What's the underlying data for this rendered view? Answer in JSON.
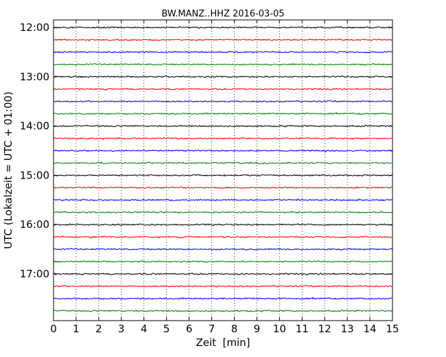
{
  "chart_data": {
    "type": "line",
    "title": "BW.MANZ..HHZ 2016-03-05",
    "xlabel": "Zeit  [min]",
    "ylabel": "UTC (Lokalzeit = UTC + 01:00)",
    "xlim": [
      0,
      15
    ],
    "x_ticks": [
      "0",
      "1",
      "2",
      "3",
      "4",
      "5",
      "6",
      "7",
      "8",
      "9",
      "10",
      "11",
      "12",
      "13",
      "14",
      "15"
    ],
    "y_tick_labels": [
      "12:00",
      "13:00",
      "14:00",
      "15:00",
      "16:00",
      "17:00"
    ],
    "grid": {
      "x": true,
      "y": false,
      "style": "dotted"
    },
    "trace_interval_minutes": 15,
    "trace_colors": [
      "#000000",
      "#ff0000",
      "#0000ff",
      "#008000"
    ],
    "series": [
      {
        "start": "12:00",
        "color": "#000000"
      },
      {
        "start": "12:15",
        "color": "#ff0000"
      },
      {
        "start": "12:30",
        "color": "#0000ff"
      },
      {
        "start": "12:45",
        "color": "#008000"
      },
      {
        "start": "13:00",
        "color": "#000000"
      },
      {
        "start": "13:15",
        "color": "#ff0000"
      },
      {
        "start": "13:30",
        "color": "#0000ff"
      },
      {
        "start": "13:45",
        "color": "#008000"
      },
      {
        "start": "14:00",
        "color": "#000000"
      },
      {
        "start": "14:15",
        "color": "#ff0000"
      },
      {
        "start": "14:30",
        "color": "#0000ff"
      },
      {
        "start": "14:45",
        "color": "#008000"
      },
      {
        "start": "15:00",
        "color": "#000000"
      },
      {
        "start": "15:15",
        "color": "#ff0000"
      },
      {
        "start": "15:30",
        "color": "#0000ff"
      },
      {
        "start": "15:45",
        "color": "#008000"
      },
      {
        "start": "16:00",
        "color": "#000000"
      },
      {
        "start": "16:15",
        "color": "#ff0000"
      },
      {
        "start": "16:30",
        "color": "#0000ff"
      },
      {
        "start": "16:45",
        "color": "#008000"
      },
      {
        "start": "17:00",
        "color": "#000000"
      },
      {
        "start": "17:15",
        "color": "#ff0000"
      },
      {
        "start": "17:30",
        "color": "#0000ff"
      },
      {
        "start": "17:45",
        "color": "#008000"
      }
    ]
  }
}
